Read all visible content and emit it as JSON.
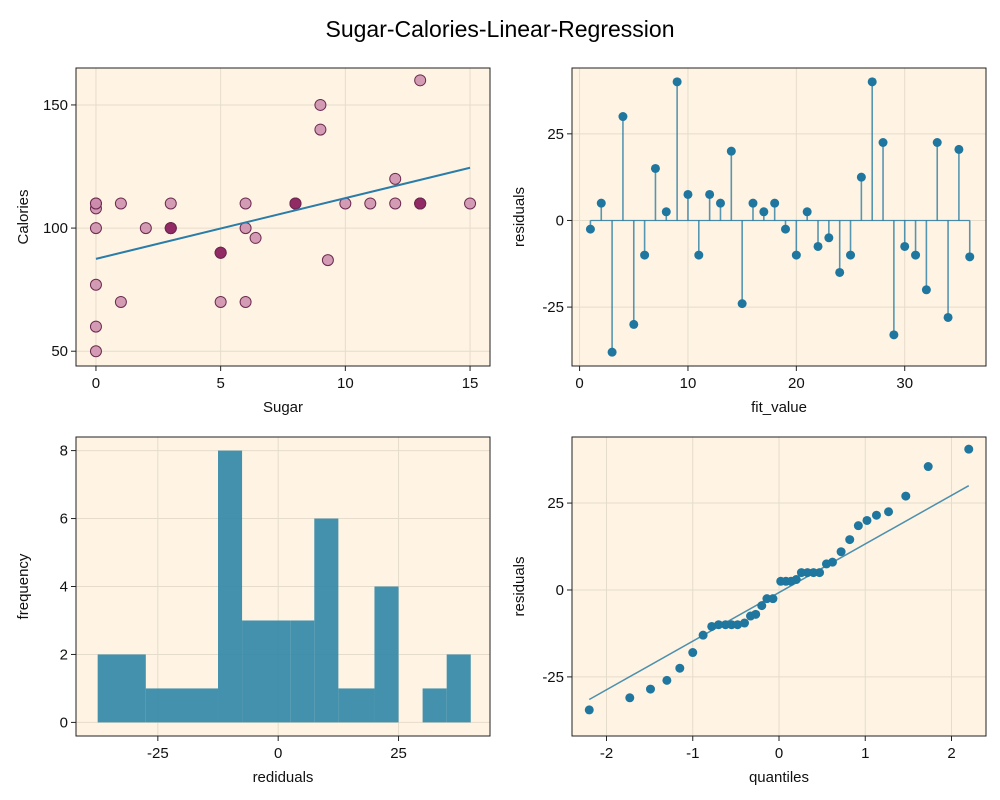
{
  "title": "Sugar-Calories-Linear-Regression",
  "colors": {
    "panel_bg": "#fff4e3",
    "frame": "#222222",
    "grid": "#e6dccb",
    "scatter_fill": "#cc8cab",
    "scatter_edge": "#6b2a4f",
    "scatter_dark": "#8c1f5e",
    "regression": "#2a7ca9",
    "residual": "#1f77a0",
    "hist": "#2f86a6"
  },
  "chart_data": [
    {
      "type": "scatter",
      "id": "fit",
      "xlabel": "Sugar",
      "ylabel": "Calories",
      "xlim": [
        -0.8,
        15.8
      ],
      "ylim": [
        44,
        165
      ],
      "xticks": [
        0,
        5,
        10,
        15
      ],
      "yticks": [
        50,
        100,
        150
      ],
      "points": [
        [
          0,
          50
        ],
        [
          0,
          60
        ],
        [
          0,
          77
        ],
        [
          0,
          100
        ],
        [
          0,
          108
        ],
        [
          0,
          110
        ],
        [
          0,
          110
        ],
        [
          1,
          70
        ],
        [
          1,
          110
        ],
        [
          2,
          100
        ],
        [
          3,
          100
        ],
        [
          3,
          100
        ],
        [
          3,
          110
        ],
        [
          5,
          70
        ],
        [
          5,
          90
        ],
        [
          5,
          90
        ],
        [
          6,
          70
        ],
        [
          6,
          100
        ],
        [
          6,
          110
        ],
        [
          6.4,
          96
        ],
        [
          8,
          110
        ],
        [
          8,
          110
        ],
        [
          9,
          140
        ],
        [
          9,
          150
        ],
        [
          9.3,
          87
        ],
        [
          10,
          110
        ],
        [
          11,
          110
        ],
        [
          12,
          110
        ],
        [
          12,
          120
        ],
        [
          13,
          110
        ],
        [
          13,
          110
        ],
        [
          13,
          160
        ],
        [
          15,
          110
        ]
      ],
      "dark_points": [
        [
          3,
          100
        ],
        [
          5,
          90
        ],
        [
          8,
          110
        ],
        [
          13,
          110
        ]
      ],
      "regression_line": [
        [
          0,
          87.5
        ],
        [
          15,
          124.5
        ]
      ],
      "grid": true
    },
    {
      "type": "stem",
      "id": "residuals-stem",
      "xlabel": "fit_value",
      "ylabel": "residuals",
      "xlim": [
        -0.7,
        37.5
      ],
      "ylim": [
        -42,
        44
      ],
      "xticks": [
        0,
        10,
        20,
        30
      ],
      "yticks": [
        -25,
        0,
        25
      ],
      "ytick_labels": [
        "-25",
        "0",
        "25"
      ],
      "x": [
        1,
        2,
        3,
        4,
        5,
        6,
        7,
        8,
        9,
        10,
        11,
        12,
        13,
        14,
        15,
        16,
        17,
        18,
        19,
        20,
        21,
        22,
        23,
        24,
        25,
        26,
        27,
        28,
        29,
        30,
        31,
        32,
        33,
        34,
        35,
        36
      ],
      "y": [
        -2.5,
        5,
        -38,
        30,
        -30,
        -10,
        15,
        2.5,
        40,
        7.5,
        -10,
        7.5,
        5,
        20,
        -24,
        5,
        2.5,
        5,
        -2.5,
        -10,
        2.5,
        -7.5,
        -5,
        -15,
        -10,
        12.5,
        40,
        22.5,
        -33,
        -7.5,
        -10,
        -20,
        22.5,
        -28,
        20.5,
        -10.5
      ],
      "grid": true
    },
    {
      "type": "bar",
      "id": "residual-histogram",
      "xlabel": "rediduals",
      "ylabel": "frequency",
      "xlim": [
        -42,
        44
      ],
      "ylim": [
        -0.4,
        8.4
      ],
      "xticks": [
        -25,
        0,
        25
      ],
      "xtick_labels": [
        "-25",
        "0",
        "25"
      ],
      "yticks": [
        0,
        2,
        4,
        6,
        8
      ],
      "bins": [
        {
          "from": -37.5,
          "to": -27.5,
          "value": 2
        },
        {
          "from": -27.5,
          "to": -12.5,
          "value": 1
        },
        {
          "from": -12.5,
          "to": -7.5,
          "value": 8
        },
        {
          "from": -7.5,
          "to": 2.5,
          "value": 3
        },
        {
          "from": 2.5,
          "to": 7.5,
          "value": 3
        },
        {
          "from": 7.5,
          "to": 12.5,
          "value": 6
        },
        {
          "from": 12.5,
          "to": 20,
          "value": 1
        },
        {
          "from": 20,
          "to": 25,
          "value": 4
        },
        {
          "from": 30,
          "to": 35,
          "value": 1
        },
        {
          "from": 35,
          "to": 40,
          "value": 2
        }
      ],
      "grid": true
    },
    {
      "type": "scatter",
      "id": "qq-plot",
      "xlabel": "quantiles",
      "ylabel": "residuals",
      "xlim": [
        -2.4,
        2.4
      ],
      "ylim": [
        -42,
        44
      ],
      "xticks": [
        -2,
        -1,
        0,
        1,
        2
      ],
      "xtick_labels": [
        "-2",
        "-1",
        "0",
        "1",
        "2"
      ],
      "yticks": [
        -25,
        0,
        25
      ],
      "ytick_labels": [
        "-25",
        "0",
        "25"
      ],
      "points": [
        [
          -2.2,
          -34.5
        ],
        [
          -1.73,
          -31
        ],
        [
          -1.49,
          -28.5
        ],
        [
          -1.3,
          -26
        ],
        [
          -1.15,
          -22.5
        ],
        [
          -1.0,
          -18
        ],
        [
          -0.88,
          -13
        ],
        [
          -0.78,
          -10.5
        ],
        [
          -0.7,
          -10
        ],
        [
          -0.62,
          -10
        ],
        [
          -0.55,
          -10
        ],
        [
          -0.48,
          -10
        ],
        [
          -0.4,
          -9.5
        ],
        [
          -0.33,
          -7.5
        ],
        [
          -0.27,
          -7
        ],
        [
          -0.2,
          -4.5
        ],
        [
          -0.14,
          -2.5
        ],
        [
          -0.07,
          -2.5
        ],
        [
          0.02,
          2.5
        ],
        [
          0.08,
          2.5
        ],
        [
          0.14,
          2.5
        ],
        [
          0.2,
          3
        ],
        [
          0.26,
          5
        ],
        [
          0.33,
          5
        ],
        [
          0.4,
          5
        ],
        [
          0.47,
          5
        ],
        [
          0.55,
          7.5
        ],
        [
          0.62,
          8
        ],
        [
          0.72,
          11
        ],
        [
          0.82,
          14.5
        ],
        [
          0.92,
          18.5
        ],
        [
          1.02,
          20
        ],
        [
          1.13,
          21.5
        ],
        [
          1.27,
          22.5
        ],
        [
          1.47,
          27
        ],
        [
          1.73,
          35.5
        ],
        [
          2.2,
          40.5
        ]
      ],
      "reference_line": [
        [
          -2.2,
          -31.5
        ],
        [
          2.2,
          30
        ]
      ],
      "grid": true
    }
  ]
}
